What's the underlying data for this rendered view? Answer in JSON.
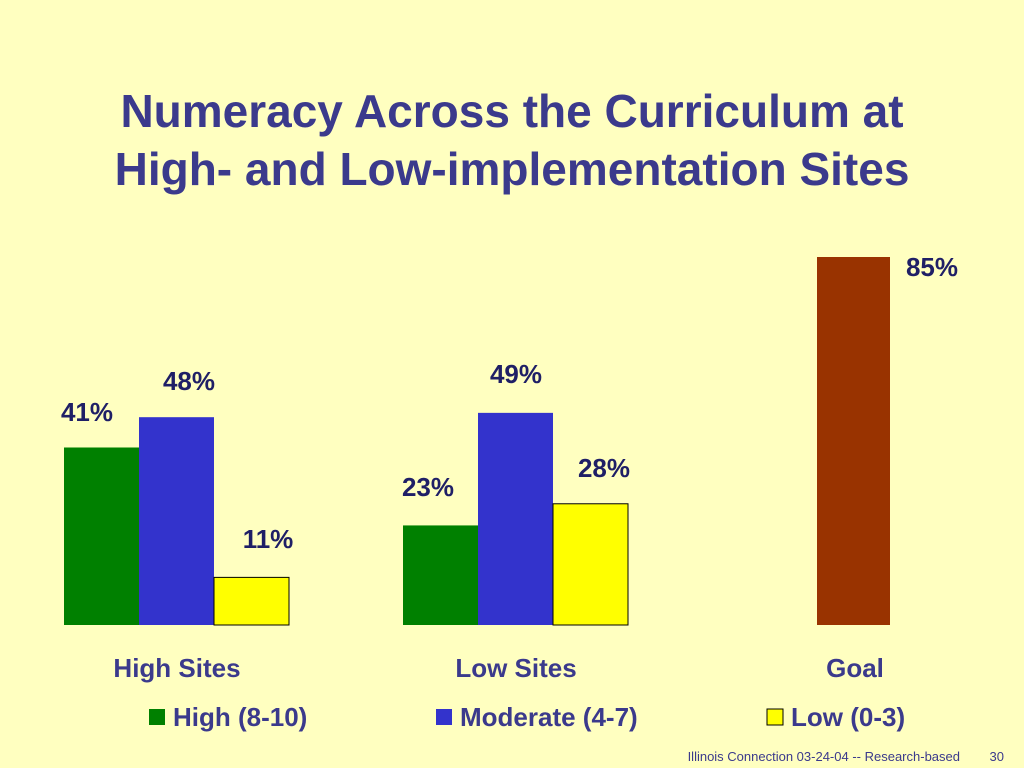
{
  "slide": {
    "title_line1": "Numeracy Across the Curriculum at",
    "title_line2": "High- and Low-implementation Sites",
    "footer": "Illinois Connection 03-24-04 -- Research-based",
    "page_number": "30"
  },
  "chart_data": {
    "type": "bar",
    "categories": [
      "High Sites",
      "Low Sites",
      "Goal"
    ],
    "series": [
      {
        "name": "High (8-10)",
        "color": "#008000",
        "values": [
          41,
          23,
          null
        ]
      },
      {
        "name": "Moderate (4-7)",
        "color": "#3333CC",
        "values": [
          48,
          49,
          null
        ]
      },
      {
        "name": "Low (0-3)",
        "color": "#FFFF00",
        "values": [
          11,
          28,
          null
        ]
      }
    ],
    "goal": {
      "value": 85,
      "label": "85%",
      "color": "#993300"
    },
    "value_labels": {
      "High Sites": [
        "41%",
        "48%",
        "11%"
      ],
      "Low Sites": [
        "23%",
        "49%",
        "28%"
      ]
    },
    "ylim": [
      0,
      85
    ],
    "legend_position": "bottom",
    "grid": false,
    "title": "Numeracy Across the Curriculum at High- and Low-implementation Sites"
  }
}
